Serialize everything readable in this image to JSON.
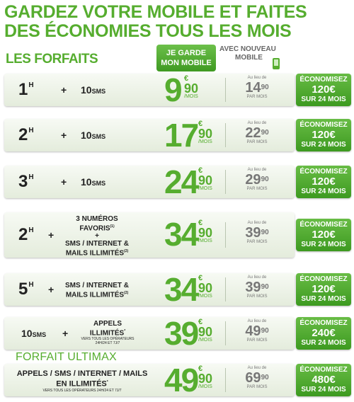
{
  "headline": {
    "line1": "GARDEZ VOTRE MOBILE ET FAITES",
    "line2": "DES ÉCONOMIES TOUS LES MOIS"
  },
  "section_title": "LES FORFAITS",
  "columns": {
    "garde_line1": "JE GARDE",
    "garde_line2": "MON MOBILE",
    "nouveau_line1": "AVEC NOUVEAU",
    "nouveau_line2": "MOBILE"
  },
  "labels": {
    "plus": "+",
    "mois": "/MOIS",
    "au_lieu_de": "Au lieu de",
    "par_mois": "PAR MOIS",
    "economisez": "ÉCONOMISEZ",
    "sur_24": "SUR 24 MOIS",
    "euro": "€"
  },
  "rows": [
    {
      "hours": "1",
      "unit": "H",
      "sms": "10",
      "sms_unit": "SMS",
      "price": "9",
      "cents": "90",
      "old": "14",
      "old_cents": "90",
      "save": "120€"
    },
    {
      "hours": "2",
      "unit": "H",
      "sms": "10",
      "sms_unit": "SMS",
      "price": "17",
      "cents": "90",
      "old": "22",
      "old_cents": "90",
      "save": "120€"
    },
    {
      "hours": "3",
      "unit": "H",
      "sms": "10",
      "sms_unit": "SMS",
      "price": "24",
      "cents": "90",
      "old": "29",
      "old_cents": "90",
      "save": "120€"
    },
    {
      "hours": "2",
      "unit": "H",
      "extra_top": "3 NUMÉROS",
      "extra_top2": "FAVORIS",
      "extra_top2_sup": "(1)",
      "extra_plus": "+",
      "extra_mid": "SMS / INTERNET &",
      "extra_bot": "MAILS ILLIMITÉS",
      "extra_bot_sup": "(2)",
      "price": "34",
      "cents": "90",
      "old": "39",
      "old_cents": "90",
      "save": "120€"
    },
    {
      "hours": "5",
      "unit": "H",
      "extra_mid": "SMS / INTERNET &",
      "extra_bot": "MAILS ILLIMITÉS",
      "extra_bot_sup": "(2)",
      "price": "34",
      "cents": "90",
      "old": "39",
      "old_cents": "90",
      "save": "120€"
    },
    {
      "sms": "10",
      "sms_unit": "SMS",
      "extra_top": "APPELS",
      "extra_bot": "ILLIMITÉS",
      "extra_bot_sup": "*",
      "extra_note": "VERS TOUS LES OPÉRATEURS",
      "extra_note2": "24H/24 ET 7J/7",
      "price": "39",
      "cents": "90",
      "old": "49",
      "old_cents": "90",
      "save": "240€"
    }
  ],
  "ultimax": {
    "title": "FORFAIT ULTIMAX",
    "line1": "APPELS / SMS / INTERNET / MAILS",
    "line2": "EN ILLIMITÉS",
    "line2_sup": "*",
    "note": "VERS TOUS LES OPÉRATEURS 24H/24 ET 7J/7",
    "price": "49",
    "cents": "90",
    "old": "69",
    "old_cents": "90",
    "save": "480€"
  }
}
